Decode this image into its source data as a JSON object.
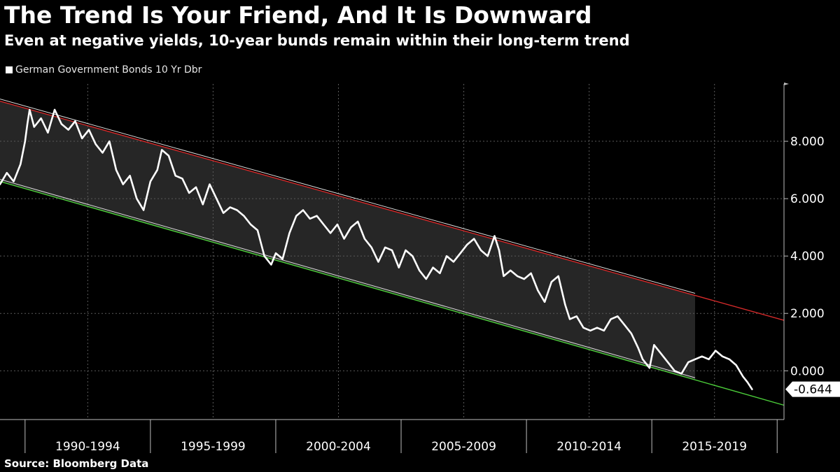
{
  "header": {
    "title": "The Trend Is Your Friend, And It Is Downward",
    "subtitle": "Even at negative yields, 10-year bunds remain within their long-term trend"
  },
  "footer": {
    "source": "Source: Bloomberg Data"
  },
  "colors": {
    "background": "#000000",
    "series": "#ffffff",
    "upper_trend": "#d42a2a",
    "lower_trend": "#4ccf3a",
    "channel_fill": "#262626",
    "grid": "#5a5a5a"
  },
  "chart_data": {
    "type": "line",
    "title": "The Trend Is Your Friend, And It Is Downward",
    "subtitle": "Even at negative yields, 10-year bunds remain within their long-term trend",
    "xlabel": "",
    "ylabel": "",
    "legend": {
      "position": "top-left",
      "entries": [
        "German Government Bonds 10 Yr Dbr"
      ]
    },
    "grid": true,
    "xlim": [
      1986.8,
      2021.2
    ],
    "ylim": [
      -1.7,
      10.0
    ],
    "y_ticks": [
      0,
      2,
      4,
      6,
      8
    ],
    "y_tick_labels": [
      "0.000",
      "2.000",
      "4.000",
      "6.000",
      "8.000"
    ],
    "categories": [
      "1990-1994",
      "1995-1999",
      "2000-2004",
      "2005-2009",
      "2010-2014",
      "2015-2019"
    ],
    "category_boundaries": [
      1987.9,
      1993.4,
      1998.9,
      2004.4,
      2009.9,
      2015.4,
      2020.9
    ],
    "series": [
      {
        "name": "German Government Bonds 10 Yr Dbr",
        "x": [
          1986.8,
          1987.1,
          1987.4,
          1987.7,
          1987.9,
          1988.0,
          1988.1,
          1988.3,
          1988.6,
          1988.9,
          1989.2,
          1989.5,
          1989.8,
          1990.1,
          1990.4,
          1990.7,
          1991.0,
          1991.3,
          1991.6,
          1991.9,
          1992.2,
          1992.5,
          1992.8,
          1993.1,
          1993.4,
          1993.7,
          1993.9,
          1994.2,
          1994.5,
          1994.8,
          1995.1,
          1995.4,
          1995.7,
          1996.0,
          1996.3,
          1996.6,
          1996.9,
          1997.2,
          1997.5,
          1997.8,
          1998.1,
          1998.4,
          1998.7,
          1998.9,
          1999.2,
          1999.5,
          1999.8,
          2000.1,
          2000.4,
          2000.7,
          2001.0,
          2001.3,
          2001.6,
          2001.9,
          2002.2,
          2002.5,
          2002.8,
          2003.1,
          2003.4,
          2003.7,
          2004.0,
          2004.3,
          2004.6,
          2004.9,
          2005.2,
          2005.5,
          2005.8,
          2006.1,
          2006.4,
          2006.7,
          2007.0,
          2007.3,
          2007.6,
          2007.9,
          2008.2,
          2008.5,
          2008.7,
          2008.9,
          2009.2,
          2009.5,
          2009.8,
          2010.1,
          2010.4,
          2010.7,
          2011.0,
          2011.3,
          2011.6,
          2011.8,
          2012.1,
          2012.4,
          2012.7,
          2013.0,
          2013.3,
          2013.6,
          2013.9,
          2014.2,
          2014.5,
          2014.8,
          2015.0,
          2015.3,
          2015.5,
          2015.8,
          2016.1,
          2016.4,
          2016.7,
          2017.0,
          2017.3,
          2017.6,
          2017.9,
          2018.2,
          2018.5,
          2018.8,
          2019.1,
          2019.4,
          2019.6,
          2019.8
        ],
        "y": [
          6.5,
          6.9,
          6.6,
          7.2,
          8.0,
          8.6,
          9.1,
          8.5,
          8.8,
          8.3,
          9.1,
          8.6,
          8.4,
          8.7,
          8.1,
          8.4,
          7.9,
          7.6,
          8.0,
          7.0,
          6.5,
          6.8,
          6.0,
          5.6,
          6.6,
          7.0,
          7.7,
          7.5,
          6.8,
          6.7,
          6.2,
          6.4,
          5.8,
          6.5,
          6.0,
          5.5,
          5.7,
          5.6,
          5.4,
          5.1,
          4.9,
          4.0,
          3.7,
          4.1,
          3.9,
          4.8,
          5.4,
          5.6,
          5.3,
          5.4,
          5.1,
          4.8,
          5.1,
          4.6,
          5.0,
          5.2,
          4.6,
          4.3,
          3.8,
          4.3,
          4.2,
          3.6,
          4.2,
          4.0,
          3.5,
          3.2,
          3.6,
          3.4,
          4.0,
          3.8,
          4.1,
          4.4,
          4.6,
          4.2,
          4.0,
          4.7,
          4.2,
          3.3,
          3.5,
          3.3,
          3.2,
          3.4,
          2.8,
          2.4,
          3.1,
          3.3,
          2.3,
          1.8,
          1.9,
          1.5,
          1.4,
          1.5,
          1.4,
          1.8,
          1.9,
          1.6,
          1.3,
          0.8,
          0.4,
          0.1,
          0.9,
          0.6,
          0.3,
          0.0,
          -0.1,
          0.3,
          0.4,
          0.5,
          0.4,
          0.7,
          0.5,
          0.4,
          0.2,
          -0.2,
          -0.4,
          -0.644
        ]
      }
    ],
    "upper_trend": {
      "x": [
        1986.8,
        2021.2
      ],
      "y": [
        9.4,
        1.76
      ]
    },
    "lower_trend": {
      "x": [
        1986.8,
        2021.2
      ],
      "y": [
        6.6,
        -1.2
      ]
    },
    "channel_end_x": 2017.3,
    "last_value": -0.644,
    "last_value_label": "-0.644",
    "legend_label": "German Government Bonds 10 Yr Dbr"
  }
}
